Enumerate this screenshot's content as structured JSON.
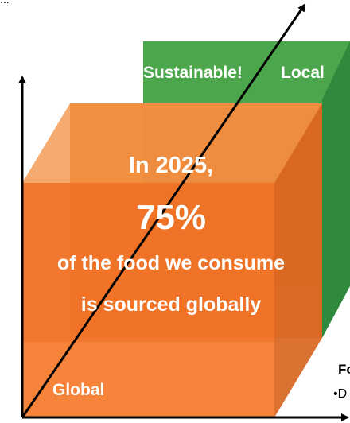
{
  "colors": {
    "front_face": "#f47a2a",
    "front_face_dark": "#e8651e",
    "top_face": "#f4a25f",
    "back_face": "#4ca64c",
    "side_face": "#2f8a3d",
    "axis": "#000000",
    "text": "#ffffff"
  },
  "caption_top": "...",
  "cube": {
    "label_sustainable": "Sustainable!",
    "label_local": "Local",
    "label_global": "Global"
  },
  "statement": {
    "year": "In 2025,",
    "percent": "75%",
    "line1": "of the food we consume",
    "line2": "is sourced globally"
  },
  "side_text": {
    "heading": "Fo",
    "bullet": "•D"
  },
  "icons": [
    "arrow-up-icon",
    "arrow-right-icon",
    "arrow-diagonal-icon"
  ]
}
